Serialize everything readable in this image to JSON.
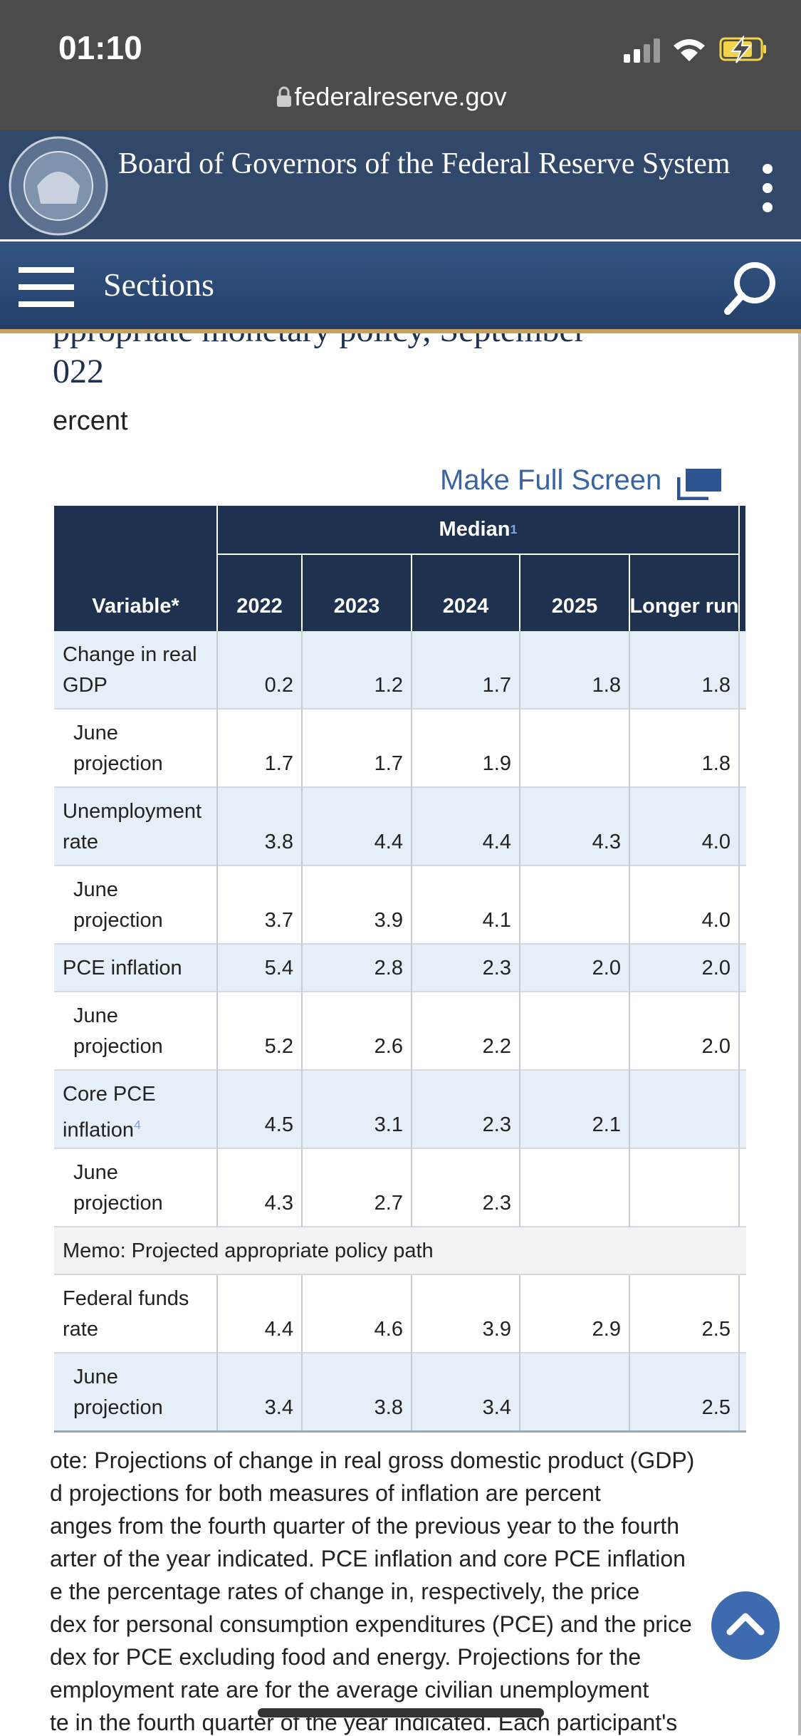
{
  "status_bar": {
    "time": "01:10"
  },
  "browser": {
    "url": "federalreserve.gov"
  },
  "header": {
    "title": "Board of Governors of the Federal Reserve System"
  },
  "nav": {
    "label": "Sections"
  },
  "content": {
    "heading_lines": [
      "ppropriate monetary policy, September",
      "022"
    ],
    "unit": "ercent",
    "fullscreen_link": "Make Full Screen"
  },
  "table": {
    "group_header": "Median",
    "group_note": "1",
    "columns": [
      "Variable*",
      "2022",
      "2023",
      "2024",
      "2025",
      "Longer run"
    ],
    "rows": [
      {
        "label": "Change in real GDP",
        "values": [
          "0.2",
          "1.2",
          "1.7",
          "1.8",
          "1.8"
        ]
      },
      {
        "label": "June projection",
        "indent": true,
        "values": [
          "1.7",
          "1.7",
          "1.9",
          null,
          "1.8"
        ]
      },
      {
        "label": "Unemployment rate",
        "values": [
          "3.8",
          "4.4",
          "4.4",
          "4.3",
          "4.0"
        ]
      },
      {
        "label": "June projection",
        "indent": true,
        "values": [
          "3.7",
          "3.9",
          "4.1",
          null,
          "4.0"
        ]
      },
      {
        "label": "PCE inflation",
        "values": [
          "5.4",
          "2.8",
          "2.3",
          "2.0",
          "2.0"
        ]
      },
      {
        "label": "June projection",
        "indent": true,
        "values": [
          "5.2",
          "2.6",
          "2.2",
          null,
          "2.0"
        ]
      },
      {
        "label": "Core PCE inflation",
        "note": "4",
        "values": [
          "4.5",
          "3.1",
          "2.3",
          "2.1",
          null
        ]
      },
      {
        "label": "June projection",
        "indent": true,
        "values": [
          "4.3",
          "2.7",
          "2.3",
          null,
          null
        ]
      }
    ],
    "memo": "Memo: Projected appropriate policy path",
    "memo_rows": [
      {
        "label": "Federal funds rate",
        "values": [
          "4.4",
          "4.6",
          "3.9",
          "2.9",
          "2.5"
        ]
      },
      {
        "label": "June projection",
        "indent": true,
        "values": [
          "3.4",
          "3.8",
          "3.4",
          null,
          "2.5"
        ]
      }
    ]
  },
  "note_lines": [
    "ote: Projections of change in real gross domestic product (GDP)",
    "d projections for both measures of inflation are percent",
    "anges from the fourth quarter of the previous year to the fourth",
    "arter of the year indicated. PCE inflation and core PCE inflation",
    "e the percentage rates of change in, respectively, the price",
    "dex for personal consumption expenditures (PCE) and the price",
    "dex for PCE excluding food and energy. Projections for the",
    "employment rate are for the average civilian unemployment",
    "te in the fourth quarter of the year indicated. Each participant's"
  ]
}
